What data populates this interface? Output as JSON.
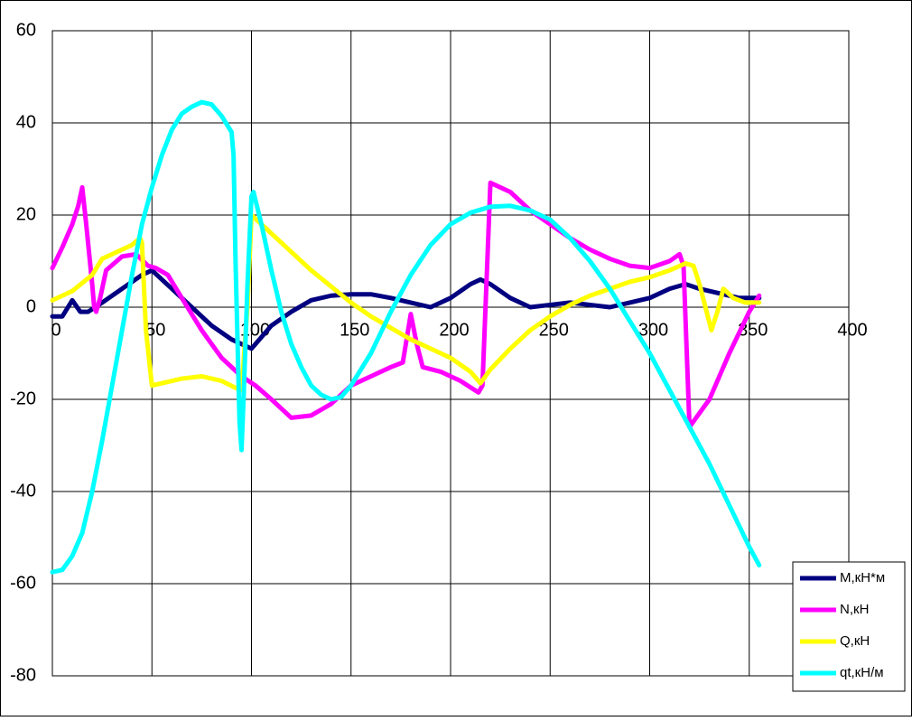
{
  "chart_data": {
    "type": "line",
    "xlim": [
      0,
      400
    ],
    "xticks": [
      0,
      50,
      100,
      150,
      200,
      250,
      300,
      350,
      400
    ],
    "ylim": [
      -80,
      60
    ],
    "yticks": [
      -80,
      -60,
      -40,
      -20,
      0,
      20,
      40,
      60
    ],
    "grid": true,
    "legend": "lower right",
    "series": [
      {
        "name": "M,кН*м",
        "color": "#000080",
        "x": [
          0,
          5,
          10,
          14,
          18,
          25,
          35,
          45,
          50,
          60,
          70,
          80,
          90,
          100,
          110,
          120,
          130,
          140,
          150,
          160,
          170,
          180,
          190,
          200,
          210,
          215,
          220,
          230,
          240,
          250,
          260,
          270,
          280,
          290,
          300,
          310,
          318,
          325,
          335,
          345,
          355
        ],
        "values": [
          -2,
          -2,
          1.5,
          -1,
          -1,
          1,
          4,
          7,
          8,
          4,
          0,
          -4,
          -7,
          -9,
          -4,
          -1,
          1.5,
          2.5,
          2.8,
          2.8,
          2,
          1,
          0,
          2,
          5,
          6,
          5,
          2,
          0,
          0.5,
          1,
          0.5,
          0,
          1,
          2,
          4,
          5,
          4,
          3,
          2,
          2
        ]
      },
      {
        "name": "N,кН",
        "color": "#ff00ff",
        "x": [
          0,
          5,
          10,
          13,
          15,
          17,
          20,
          21,
          22,
          24,
          27,
          35,
          42,
          48,
          52,
          58,
          65,
          75,
          85,
          95,
          102,
          110,
          120,
          130,
          140,
          150,
          160,
          170,
          173,
          176,
          180,
          183,
          186,
          195,
          205,
          214,
          216,
          220,
          230,
          240,
          250,
          260,
          270,
          280,
          290,
          300,
          310,
          315,
          317,
          320,
          330,
          340,
          350,
          355
        ],
        "values": [
          8.5,
          13,
          18,
          22,
          26,
          18,
          5,
          0,
          -1,
          2,
          8,
          11,
          11.5,
          9,
          8.5,
          7,
          2,
          -5,
          -11,
          -15,
          -17,
          -20,
          -24,
          -23.5,
          -21,
          -17,
          -15,
          -13,
          -12.5,
          -12,
          -1.5,
          -8,
          -13,
          -14,
          -16,
          -18.5,
          -17,
          27,
          25,
          21,
          18,
          15,
          12.5,
          10.5,
          9,
          8.5,
          10,
          11.5,
          9,
          -26,
          -20,
          -10,
          -1,
          2.5
        ]
      },
      {
        "name": "Q,кН",
        "color": "#ffff00",
        "x": [
          0,
          10,
          20,
          25,
          30,
          35,
          40,
          44,
          45,
          47,
          50,
          55,
          65,
          75,
          85,
          92,
          95,
          98,
          100,
          110,
          120,
          130,
          140,
          150,
          160,
          170,
          180,
          190,
          200,
          210,
          215,
          220,
          230,
          240,
          250,
          260,
          270,
          280,
          290,
          300,
          310,
          318,
          322,
          325,
          328,
          331,
          334,
          337,
          342,
          348,
          355
        ],
        "values": [
          1.5,
          3.5,
          7,
          10.5,
          11.5,
          12.5,
          13.5,
          15,
          14,
          -5,
          -17,
          -16.5,
          -15.5,
          -15,
          -16,
          -17.5,
          -18,
          0,
          20,
          16,
          12,
          8,
          4.5,
          1,
          -2,
          -4.5,
          -7,
          -9,
          -11,
          -14,
          -16.5,
          -13.5,
          -9,
          -5,
          -2,
          0.5,
          2.5,
          4,
          5.5,
          6.5,
          8,
          9.5,
          9,
          5,
          0,
          -5,
          -1,
          4,
          2,
          1,
          1
        ]
      },
      {
        "name": "qt,кН/м",
        "color": "#00ffff",
        "x": [
          0,
          5,
          10,
          15,
          20,
          25,
          30,
          35,
          40,
          45,
          50,
          55,
          60,
          65,
          70,
          75,
          80,
          85,
          90,
          91,
          92,
          94,
          95,
          96,
          98,
          100,
          101,
          105,
          110,
          115,
          120,
          125,
          130,
          135,
          140,
          145,
          150,
          160,
          170,
          180,
          190,
          200,
          210,
          220,
          230,
          240,
          250,
          260,
          270,
          280,
          290,
          300,
          310,
          320,
          330,
          340,
          350,
          355
        ],
        "values": [
          -57.5,
          -57,
          -54,
          -49,
          -40,
          -29,
          -17,
          -5,
          7,
          18,
          26,
          33,
          38.5,
          42,
          43.5,
          44.5,
          44,
          41.5,
          38,
          33,
          10,
          -25,
          -31,
          -20,
          5,
          24,
          25,
          18,
          8,
          -1,
          -8,
          -13,
          -17,
          -19,
          -20,
          -19.5,
          -17,
          -10,
          -1,
          7,
          13.5,
          18,
          20.5,
          21.8,
          22,
          21,
          19,
          15,
          10,
          4,
          -3,
          -10,
          -18,
          -26,
          -34,
          -43,
          -52,
          -56
        ]
      }
    ]
  }
}
